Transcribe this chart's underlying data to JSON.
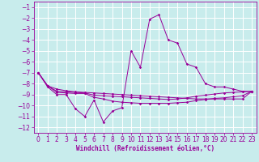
{
  "xlabel": "Windchill (Refroidissement éolien,°C)",
  "xlim": [
    -0.5,
    23.5
  ],
  "ylim": [
    -12.5,
    -0.5
  ],
  "yticks": [
    -12,
    -11,
    -10,
    -9,
    -8,
    -7,
    -6,
    -5,
    -4,
    -3,
    -2,
    -1
  ],
  "xticks": [
    0,
    1,
    2,
    3,
    4,
    5,
    6,
    7,
    8,
    9,
    10,
    11,
    12,
    13,
    14,
    15,
    16,
    17,
    18,
    19,
    20,
    21,
    22,
    23
  ],
  "bg_color": "#c8ecec",
  "grid_color": "#ffffff",
  "line_color": "#990099",
  "line2_x": [
    0,
    1,
    2,
    3,
    4,
    5,
    6,
    7,
    8,
    9,
    10,
    11,
    12,
    13,
    14,
    15,
    16,
    17,
    18,
    19,
    20,
    21,
    22,
    23
  ],
  "line2_y": [
    -7.0,
    -8.3,
    -9.0,
    -9.0,
    -10.3,
    -11.0,
    -9.5,
    -11.5,
    -10.5,
    -10.2,
    -5.0,
    -6.5,
    -2.1,
    -1.7,
    -4.0,
    -4.3,
    -6.2,
    -6.5,
    -8.0,
    -8.3,
    -8.3,
    -8.5,
    -8.7,
    -8.7
  ],
  "line1_x": [
    0,
    1,
    2,
    3,
    4,
    5,
    6,
    7,
    8,
    9,
    10,
    11,
    12,
    13,
    14,
    15,
    16,
    17,
    18,
    19,
    20,
    21,
    22,
    23
  ],
  "line1_y": [
    -7.0,
    -8.2,
    -8.5,
    -8.65,
    -8.75,
    -8.8,
    -8.85,
    -8.9,
    -8.95,
    -9.0,
    -9.05,
    -9.1,
    -9.15,
    -9.2,
    -9.25,
    -9.3,
    -9.35,
    -9.4,
    -9.4,
    -9.4,
    -9.4,
    -9.4,
    -9.4,
    -8.7
  ],
  "line3_x": [
    0,
    1,
    2,
    3,
    4,
    5,
    6,
    7,
    8,
    9,
    10,
    11,
    12,
    13,
    14,
    15,
    16,
    17,
    18,
    19,
    20,
    21,
    22,
    23
  ],
  "line3_y": [
    -7.0,
    -8.2,
    -8.8,
    -8.85,
    -8.9,
    -8.9,
    -9.25,
    -9.4,
    -9.6,
    -9.7,
    -9.75,
    -9.8,
    -9.8,
    -9.8,
    -9.8,
    -9.75,
    -9.7,
    -9.55,
    -9.45,
    -9.35,
    -9.3,
    -9.2,
    -9.1,
    -8.7
  ],
  "line4_x": [
    0,
    1,
    2,
    3,
    4,
    5,
    6,
    7,
    8,
    9,
    10,
    11,
    12,
    13,
    14,
    15,
    16,
    17,
    18,
    19,
    20,
    21,
    22,
    23
  ],
  "line4_y": [
    -7.0,
    -8.2,
    -8.7,
    -8.75,
    -8.8,
    -8.85,
    -9.05,
    -9.1,
    -9.15,
    -9.2,
    -9.25,
    -9.3,
    -9.35,
    -9.4,
    -9.45,
    -9.4,
    -9.3,
    -9.15,
    -9.05,
    -8.95,
    -8.85,
    -8.8,
    -8.75,
    -8.7
  ],
  "tick_fontsize": 5.5,
  "xlabel_fontsize": 5.5,
  "lw": 0.7,
  "ms": 1.8
}
